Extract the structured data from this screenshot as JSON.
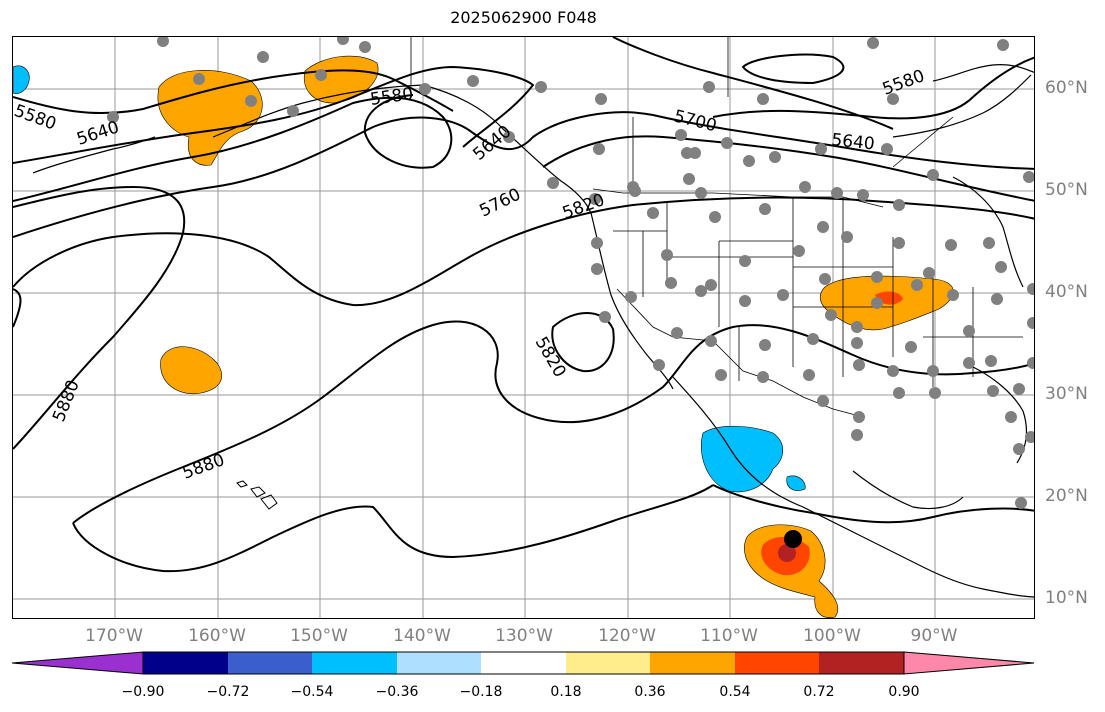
{
  "title": "2025062900 F048",
  "map": {
    "lon_labels": [
      "170°W",
      "160°W",
      "150°W",
      "140°W",
      "130°W",
      "120°W",
      "110°W",
      "100°W",
      "90°W"
    ],
    "lat_labels": [
      "60°N",
      "50°N",
      "40°N",
      "30°N",
      "20°N",
      "10°N"
    ],
    "contour_labels": [
      "5580",
      "5640",
      "5580",
      "5700",
      "5640",
      "5580",
      "5640",
      "5760",
      "5820",
      "5820",
      "5880",
      "5880"
    ]
  },
  "colorbar": {
    "ticks": [
      "−0.90",
      "−0.72",
      "−0.54",
      "−0.36",
      "−0.18",
      "0.18",
      "0.36",
      "0.54",
      "0.72",
      "0.90"
    ],
    "colors": [
      "#9b30d0",
      "#00008b",
      "#3a5fcd",
      "#00bfff",
      "#afdfff",
      "#ffffff",
      "#ffec8b",
      "#ffa500",
      "#ff4500",
      "#b22222",
      "#ff88aa"
    ]
  }
}
